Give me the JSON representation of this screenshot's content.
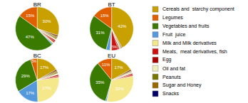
{
  "chart_data": [
    {
      "type": "pie",
      "title": "BR",
      "values": [
        30,
        15,
        47,
        1,
        1,
        1,
        1,
        1,
        1,
        1,
        1
      ],
      "value_labels": [
        "30%",
        "15%",
        "47%",
        null,
        null,
        null,
        null,
        null,
        null,
        null,
        null
      ],
      "colors": [
        "#C8A000",
        "#E06000",
        "#3A7A00",
        "#5599DD",
        "#F5E88A",
        "#CC1111",
        "#AA0000",
        "#EEEEBB",
        "#777700",
        "#996600",
        "#6B3000"
      ],
      "data_labels": true
    },
    {
      "type": "pie",
      "title": "BT",
      "values": [
        42,
        15,
        31,
        3,
        1,
        5,
        1,
        0.5,
        0.5,
        0.5,
        0.5
      ],
      "value_labels": [
        "42%",
        "15%",
        "31%",
        null,
        null,
        "5%",
        null,
        null,
        null,
        null,
        null
      ],
      "colors": [
        "#C8A000",
        "#E06000",
        "#3A7A00",
        "#5599DD",
        "#F5E88A",
        "#CC1111",
        "#AA0000",
        "#EEEEBB",
        "#777700",
        "#996600",
        "#6B3000"
      ],
      "data_labels": true
    },
    {
      "type": "pie",
      "title": "BC",
      "values": [
        17,
        5,
        29,
        17,
        27,
        1,
        1,
        1,
        1,
        1,
        1
      ],
      "value_labels": [
        "17%",
        "5%",
        "29%",
        "17%",
        "27%",
        null,
        null,
        null,
        null,
        null,
        null
      ],
      "colors": [
        "#C8A000",
        "#E06000",
        "#3A7A00",
        "#5599DD",
        "#F5E88A",
        "#CC1111",
        "#AA0000",
        "#EEEEBB",
        "#777700",
        "#996600",
        "#6B3000"
      ],
      "data_labels": true
    },
    {
      "type": "pie",
      "title": "EU",
      "values": [
        17,
        11,
        35,
        1,
        32,
        1,
        1,
        1,
        0.5,
        0.5,
        1
      ],
      "value_labels": [
        "17%",
        "11%",
        "35%",
        null,
        "32%",
        null,
        null,
        null,
        null,
        null,
        null
      ],
      "colors": [
        "#C8A000",
        "#E06000",
        "#3A7A00",
        "#5599DD",
        "#F5E88A",
        "#CC1111",
        "#AA0000",
        "#EEEEBB",
        "#777700",
        "#996600",
        "#6B3000"
      ],
      "data_labels": true
    }
  ],
  "legend": {
    "position": "right",
    "categories": [
      "Cereals and  starchy component",
      "Legumes",
      "Vegetables and fruits",
      "Fruit  juice",
      "Milk and Milk derivatives",
      "Meats,  meat derivatives, fish",
      "Egg",
      "Oil and fat",
      "Peanuts",
      "Sugar and Honey",
      "Snacks"
    ],
    "colors": [
      "#C8A000",
      "#E06000",
      "#3A7A00",
      "#5599DD",
      "#F5E88A",
      "#CC1111",
      "#AA0000",
      "#EEEEBB",
      "#777700",
      "#996600",
      "#000066"
    ]
  }
}
